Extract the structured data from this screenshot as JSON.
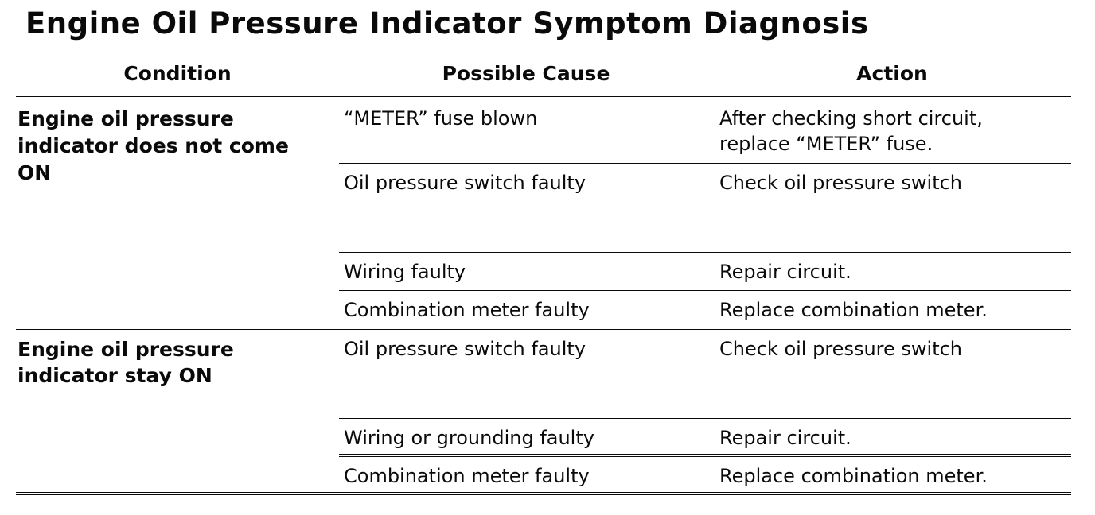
{
  "title": "Engine Oil Pressure Indicator Symptom Diagnosis",
  "table": {
    "headers": [
      "Condition",
      "Possible Cause",
      "Action"
    ],
    "groups": [
      {
        "condition": "Engine oil pressure indicator does not come ON",
        "rows": [
          {
            "cause": "“METER” fuse blown",
            "action": "After checking short circuit,\nreplace “METER” fuse."
          },
          {
            "cause": "Oil pressure switch faulty",
            "action": "Check oil pressure switch"
          },
          {
            "cause": "Wiring faulty",
            "action": "Repair circuit."
          },
          {
            "cause": "Combination meter faulty",
            "action": "Replace combination meter."
          }
        ]
      },
      {
        "condition": "Engine oil pressure indicator stay ON",
        "rows": [
          {
            "cause": "Oil pressure switch faulty",
            "action": "Check oil pressure switch"
          },
          {
            "cause": "Wiring or grounding faulty",
            "action": "Repair circuit."
          },
          {
            "cause": "Combination meter faulty",
            "action": "Replace combination meter."
          }
        ]
      }
    ]
  }
}
